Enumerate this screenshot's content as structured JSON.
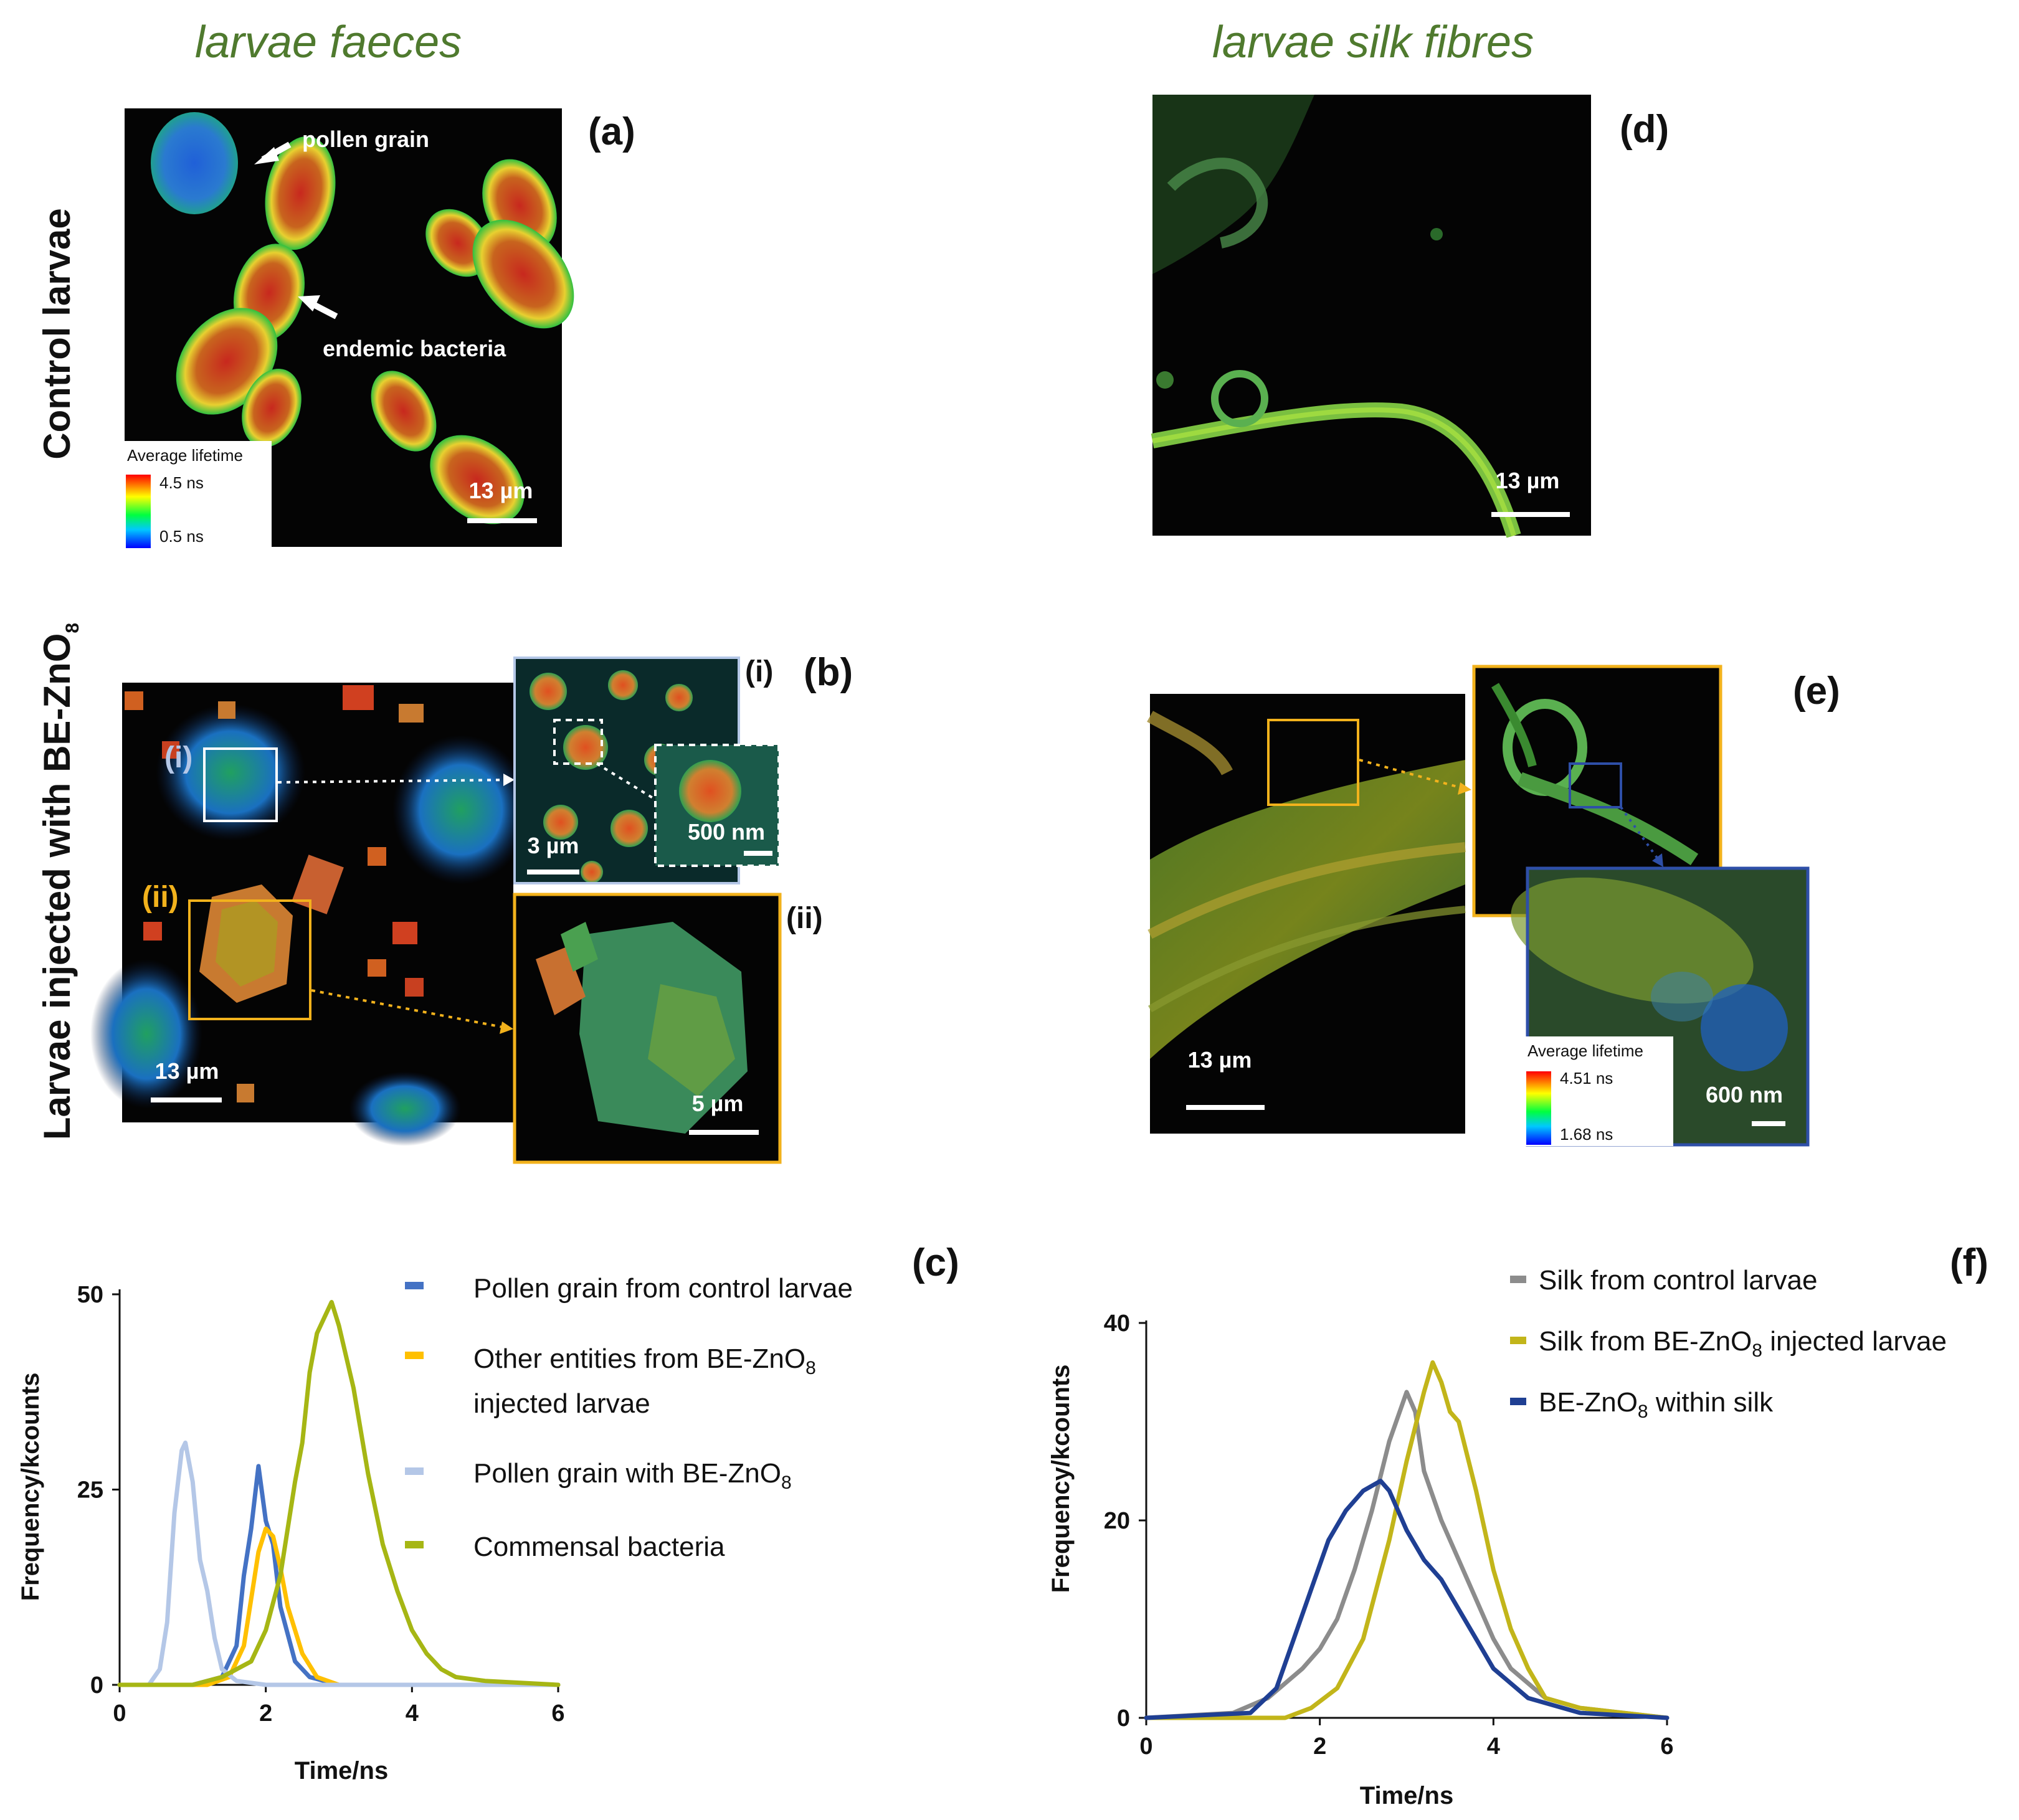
{
  "headers": {
    "left": "larvae faeces",
    "right": "larvae silk fibres"
  },
  "row_labels": {
    "control": "Control larvae",
    "injected_prefix": "Larvae injected with BE-ZnO",
    "injected_sub": "8"
  },
  "panels": {
    "a": {
      "label": "(a)",
      "pollen_label": "pollen grain",
      "bacteria_label": "endemic bacteria",
      "scalebar": "13 µm",
      "colorbar": {
        "title": "Average lifetime",
        "max": "4.5 ns",
        "min": "0.5 ns"
      }
    },
    "b": {
      "label": "(b)",
      "scalebar": "13 µm",
      "roi_i": "(i)",
      "roi_ii": "(ii)",
      "inset_i": {
        "label": "(i)",
        "scalebar": "3 µm",
        "zoom_scalebar": "500 nm"
      },
      "inset_ii": {
        "label": "(ii)",
        "scalebar": "5 µm"
      }
    },
    "d": {
      "label": "(d)",
      "scalebar": "13 µm"
    },
    "e": {
      "label": "(e)",
      "scalebar": "13 µm",
      "zoom_scalebar": "600 nm",
      "colorbar": {
        "title": "Average lifetime",
        "max": "4.51 ns",
        "min": "1.68 ns"
      }
    },
    "c": {
      "label": "(c)"
    },
    "f": {
      "label": "(f)"
    }
  },
  "colors": {
    "title_green": "#4f7a2e",
    "pollen_control": "#4472c4",
    "other_entities": "#ffc000",
    "pollen_with": "#b4c7e7",
    "commensal": "#a6b614",
    "silk_control": "#8c8c8c",
    "silk_injected": "#c2b51a",
    "be_within_silk": "#1f3f93",
    "roi_white": "#ffffff",
    "roi_orange": "#f2b21c",
    "roi_blue": "#2e4fa8"
  },
  "chart_data": [
    {
      "id": "c",
      "type": "line",
      "xlabel": "Time/ns",
      "ylabel": "Frequency/kcounts",
      "xlim": [
        0,
        6
      ],
      "ylim": [
        0,
        50
      ],
      "xticks": [
        "0",
        "2",
        "4",
        "6"
      ],
      "yticks": [
        "0",
        "25",
        "50"
      ],
      "series": [
        {
          "name": "Pollen grain from control larvae",
          "color": "#4472c4",
          "x": [
            0,
            1.0,
            1.4,
            1.6,
            1.7,
            1.8,
            1.9,
            2.0,
            2.1,
            2.2,
            2.4,
            2.6,
            2.8,
            3.0,
            4.0,
            6.0
          ],
          "y": [
            0,
            0,
            1,
            5,
            14,
            20,
            28,
            21,
            18,
            10,
            3,
            1,
            0.5,
            0,
            0,
            0
          ]
        },
        {
          "name_prefix": "Other entities from BE-ZnO",
          "name_sub": "8",
          "name_line2": "injected larvae",
          "color": "#ffc000",
          "x": [
            0,
            1.2,
            1.5,
            1.7,
            1.8,
            1.9,
            2.0,
            2.1,
            2.2,
            2.3,
            2.5,
            2.7,
            3.0,
            4.0,
            6.0
          ],
          "y": [
            0,
            0,
            1,
            5,
            11,
            17,
            20,
            19,
            15,
            10,
            4,
            1,
            0,
            0,
            0
          ]
        },
        {
          "name_prefix": "Pollen grain with BE-ZnO",
          "name_sub": "8",
          "color": "#b4c7e7",
          "x": [
            0,
            0.4,
            0.55,
            0.65,
            0.75,
            0.85,
            0.9,
            1.0,
            1.1,
            1.2,
            1.3,
            1.4,
            1.6,
            2.0,
            6.0
          ],
          "y": [
            0,
            0,
            2,
            8,
            22,
            30,
            31,
            26,
            16,
            12,
            6,
            2,
            0.5,
            0,
            0
          ]
        },
        {
          "name": "Commensal bacteria",
          "color": "#a6b614",
          "x": [
            0,
            1.0,
            1.4,
            1.8,
            2.0,
            2.2,
            2.4,
            2.5,
            2.6,
            2.7,
            2.8,
            2.9,
            3.0,
            3.2,
            3.4,
            3.6,
            3.8,
            4.0,
            4.2,
            4.4,
            4.6,
            5.0,
            6.0
          ],
          "y": [
            0,
            0,
            1,
            3,
            7,
            14,
            26,
            31,
            40,
            45,
            47,
            49,
            46,
            38,
            27,
            18,
            12,
            7,
            4,
            2,
            1,
            0.5,
            0
          ]
        }
      ]
    },
    {
      "id": "f",
      "type": "line",
      "xlabel": "Time/ns",
      "ylabel": "Frequency/kcounts",
      "xlim": [
        0,
        6
      ],
      "ylim": [
        0,
        40
      ],
      "xticks": [
        "0",
        "2",
        "4",
        "6"
      ],
      "yticks": [
        "0",
        "20",
        "40"
      ],
      "series": [
        {
          "name": "Silk from control larvae",
          "color": "#8c8c8c",
          "x": [
            0,
            1.0,
            1.4,
            1.8,
            2.0,
            2.2,
            2.4,
            2.6,
            2.8,
            3.0,
            3.1,
            3.2,
            3.4,
            3.6,
            3.8,
            4.0,
            4.2,
            4.6,
            5.0,
            6.0
          ],
          "y": [
            0,
            0.5,
            2,
            5,
            7,
            10,
            15,
            21,
            28,
            33,
            31,
            25,
            20,
            16,
            12,
            8,
            5,
            2,
            1,
            0
          ]
        },
        {
          "name_prefix": "Silk from BE-ZnO",
          "name_sub": "8",
          "name_suffix": " injected larvae",
          "color": "#c2b51a",
          "x": [
            0,
            1.6,
            1.9,
            2.2,
            2.5,
            2.8,
            3.0,
            3.2,
            3.3,
            3.4,
            3.5,
            3.6,
            3.8,
            4.0,
            4.2,
            4.4,
            4.6,
            5.0,
            6.0
          ],
          "y": [
            0,
            0,
            1,
            3,
            8,
            18,
            26,
            33,
            36,
            34,
            31,
            30,
            23,
            15,
            9,
            5,
            2,
            1,
            0
          ]
        },
        {
          "name_prefix": "BE-ZnO",
          "name_sub": "8",
          "name_suffix": " within silk",
          "color": "#1f3f93",
          "x": [
            0,
            1.2,
            1.5,
            1.7,
            1.9,
            2.1,
            2.3,
            2.5,
            2.7,
            2.8,
            2.9,
            3.0,
            3.2,
            3.4,
            3.6,
            3.8,
            4.0,
            4.4,
            5.0,
            6.0
          ],
          "y": [
            0,
            0.5,
            3,
            8,
            13,
            18,
            21,
            23,
            24,
            23,
            21,
            19,
            16,
            14,
            11,
            8,
            5,
            2,
            0.5,
            0
          ]
        }
      ]
    }
  ]
}
